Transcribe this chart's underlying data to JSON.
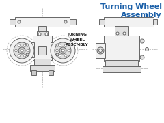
{
  "title": "Turning Wheel\nAssembly",
  "title_color": "#1a5fa8",
  "label_text": "TURNING\nWHEEL\nASSEMBLY",
  "bg_color": "#ffffff",
  "line_color": "#666666",
  "dash_color": "#aaaaaa",
  "fill_light": "#f2f2f2",
  "fill_mid": "#e0e0e0",
  "fill_dark": "#cccccc"
}
